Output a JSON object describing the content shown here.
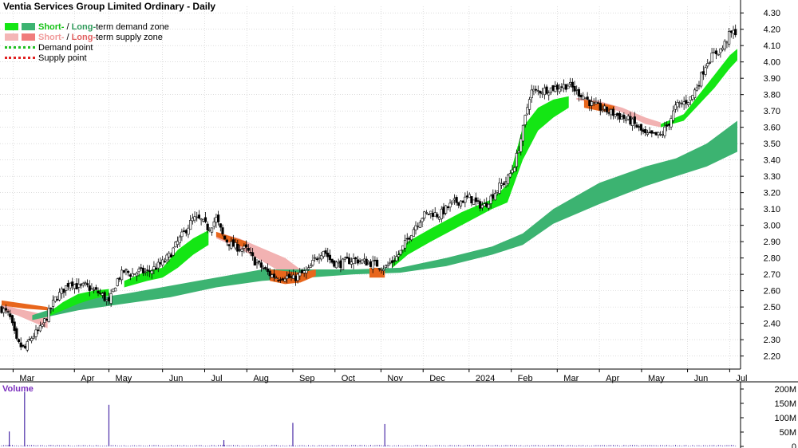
{
  "title": "Ventia Services Group Limited Ordinary - Daily",
  "legend": {
    "demand_zone": {
      "short": "Short-",
      "sep": " / ",
      "long": "Long-",
      "rest": "term demand zone"
    },
    "supply_zone": {
      "short": "Short-",
      "sep": " / ",
      "long": "Long-",
      "rest": "term supply zone"
    },
    "demand_point": "Demand point",
    "supply_point": "Supply point"
  },
  "colors": {
    "short_demand": "#14e614",
    "long_demand": "#3cb371",
    "short_supply": "#f4b6b6",
    "long_supply": "#f07c7c",
    "short_supply_fill": "#f2b2b2",
    "orange_band": "#e8661c",
    "candle": "#000000",
    "volume_bar": "#4b2ca8",
    "volume_label": "#7b2fbe",
    "grid": "#c8c8c8",
    "demand_point": "#21c021",
    "supply_point": "#e02020"
  },
  "volume_label": "Volume",
  "chart_data": {
    "type": "candlestick",
    "price_ylim": [
      2.12,
      4.34
    ],
    "price_ticks": [
      2.2,
      2.3,
      2.4,
      2.5,
      2.6,
      2.7,
      2.8,
      2.9,
      3.0,
      3.1,
      3.2,
      3.3,
      3.4,
      3.5,
      3.6,
      3.7,
      3.8,
      3.9,
      4.0,
      4.1,
      4.2,
      4.3
    ],
    "price_tick_labels": [
      "2.20",
      "2.30",
      "2.40",
      "2.50",
      "2.60",
      "2.70",
      "2.80",
      "2.90",
      "3.00",
      "3.10",
      "3.20",
      "3.30",
      "3.40",
      "3.50",
      "3.60",
      "3.70",
      "3.80",
      "3.90",
      "4.00",
      "4.10",
      "4.20",
      "4.30"
    ],
    "x_range": [
      0,
      96
    ],
    "months": [
      {
        "label": "Mar",
        "x": 1.5
      },
      {
        "label": "Apr",
        "x": 9.5
      },
      {
        "label": "May",
        "x": 14
      },
      {
        "label": "Jun",
        "x": 21
      },
      {
        "label": "Jul",
        "x": 26.5
      },
      {
        "label": "Aug",
        "x": 32
      },
      {
        "label": "Sep",
        "x": 38
      },
      {
        "label": "Oct",
        "x": 43.5
      },
      {
        "label": "Nov",
        "x": 49.5
      },
      {
        "label": "Dec",
        "x": 55
      },
      {
        "label": "2024",
        "x": 61
      },
      {
        "label": "Feb",
        "x": 66.5
      },
      {
        "label": "Mar",
        "x": 72.5
      },
      {
        "label": "Apr",
        "x": 78
      },
      {
        "label": "May",
        "x": 83.5
      },
      {
        "label": "Jun",
        "x": 89.5
      },
      {
        "label": "Jul",
        "x": 95
      }
    ],
    "close_path": [
      [
        0,
        2.49
      ],
      [
        1,
        2.45
      ],
      [
        2,
        2.28
      ],
      [
        3,
        2.24
      ],
      [
        4,
        2.32
      ],
      [
        5,
        2.36
      ],
      [
        6,
        2.45
      ],
      [
        7,
        2.55
      ],
      [
        8,
        2.6
      ],
      [
        9,
        2.66
      ],
      [
        10,
        2.62
      ],
      [
        11,
        2.63
      ],
      [
        12,
        2.6
      ],
      [
        13,
        2.58
      ],
      [
        14,
        2.52
      ],
      [
        15,
        2.66
      ],
      [
        16,
        2.72
      ],
      [
        17,
        2.7
      ],
      [
        18,
        2.72
      ],
      [
        19,
        2.71
      ],
      [
        20,
        2.74
      ],
      [
        21,
        2.77
      ],
      [
        22,
        2.82
      ],
      [
        23,
        2.9
      ],
      [
        24,
        2.97
      ],
      [
        25,
        3.04
      ],
      [
        26,
        3.03
      ],
      [
        27,
        2.98
      ],
      [
        28,
        3.04
      ],
      [
        29,
        2.92
      ],
      [
        30,
        2.88
      ],
      [
        31,
        2.86
      ],
      [
        32,
        2.85
      ],
      [
        33,
        2.78
      ],
      [
        34,
        2.74
      ],
      [
        35,
        2.7
      ],
      [
        36,
        2.68
      ],
      [
        37,
        2.69
      ],
      [
        38,
        2.67
      ],
      [
        39,
        2.7
      ],
      [
        40,
        2.72
      ],
      [
        41,
        2.8
      ],
      [
        42,
        2.85
      ],
      [
        43,
        2.78
      ],
      [
        44,
        2.76
      ],
      [
        45,
        2.78
      ],
      [
        46,
        2.79
      ],
      [
        47,
        2.78
      ],
      [
        48,
        2.77
      ],
      [
        49,
        2.76
      ],
      [
        50,
        2.74
      ],
      [
        51,
        2.78
      ],
      [
        52,
        2.83
      ],
      [
        53,
        2.92
      ],
      [
        54,
        3.0
      ],
      [
        55,
        3.06
      ],
      [
        56,
        3.08
      ],
      [
        57,
        3.06
      ],
      [
        58,
        3.1
      ],
      [
        59,
        3.14
      ],
      [
        60,
        3.15
      ],
      [
        61,
        3.17
      ],
      [
        62,
        3.13
      ],
      [
        63,
        3.12
      ],
      [
        64,
        3.18
      ],
      [
        65,
        3.24
      ],
      [
        66,
        3.28
      ],
      [
        67,
        3.38
      ],
      [
        68,
        3.58
      ],
      [
        69,
        3.82
      ],
      [
        70,
        3.82
      ],
      [
        71,
        3.83
      ],
      [
        72,
        3.84
      ],
      [
        73,
        3.85
      ],
      [
        74,
        3.86
      ],
      [
        75,
        3.82
      ],
      [
        76,
        3.79
      ],
      [
        77,
        3.74
      ],
      [
        78,
        3.72
      ],
      [
        79,
        3.7
      ],
      [
        80,
        3.68
      ],
      [
        81,
        3.66
      ],
      [
        82,
        3.64
      ],
      [
        83,
        3.6
      ],
      [
        84,
        3.55
      ],
      [
        85,
        3.55
      ],
      [
        86,
        3.55
      ],
      [
        87,
        3.62
      ],
      [
        88,
        3.73
      ],
      [
        89,
        3.75
      ],
      [
        90,
        3.78
      ],
      [
        91,
        3.88
      ],
      [
        92,
        4.0
      ],
      [
        93,
        4.05
      ],
      [
        94,
        4.08
      ],
      [
        95,
        4.17
      ],
      [
        96,
        4.19
      ]
    ],
    "long_demand_zone": {
      "upper": [
        [
          4,
          2.45
        ],
        [
          10,
          2.54
        ],
        [
          16,
          2.58
        ],
        [
          22,
          2.63
        ],
        [
          28,
          2.68
        ],
        [
          34,
          2.73
        ],
        [
          40,
          2.73
        ],
        [
          46,
          2.73
        ],
        [
          52,
          2.74
        ],
        [
          58,
          2.8
        ],
        [
          64,
          2.87
        ],
        [
          68,
          2.95
        ],
        [
          72,
          3.1
        ],
        [
          78,
          3.26
        ],
        [
          84,
          3.36
        ],
        [
          88,
          3.41
        ],
        [
          92,
          3.5
        ],
        [
          96,
          3.64
        ]
      ],
      "lower": [
        [
          4,
          2.42
        ],
        [
          10,
          2.48
        ],
        [
          16,
          2.52
        ],
        [
          22,
          2.56
        ],
        [
          28,
          2.62
        ],
        [
          34,
          2.66
        ],
        [
          40,
          2.68
        ],
        [
          46,
          2.7
        ],
        [
          52,
          2.71
        ],
        [
          58,
          2.75
        ],
        [
          64,
          2.82
        ],
        [
          68,
          2.88
        ],
        [
          72,
          3.01
        ],
        [
          78,
          3.13
        ],
        [
          84,
          3.24
        ],
        [
          88,
          3.3
        ],
        [
          92,
          3.36
        ],
        [
          96,
          3.45
        ]
      ]
    },
    "short_demand_zone": [
      {
        "upper": [
          [
            6,
            2.46
          ],
          [
            8,
            2.53
          ],
          [
            10,
            2.58
          ],
          [
            12,
            2.6
          ],
          [
            14,
            2.61
          ]
        ],
        "lower": [
          [
            6,
            2.44
          ],
          [
            8,
            2.48
          ],
          [
            10,
            2.52
          ],
          [
            12,
            2.55
          ],
          [
            14,
            2.57
          ]
        ]
      },
      {
        "upper": [
          [
            16,
            2.66
          ],
          [
            19,
            2.72
          ],
          [
            21,
            2.74
          ],
          [
            23,
            2.85
          ],
          [
            25,
            2.92
          ],
          [
            27,
            2.97
          ]
        ],
        "lower": [
          [
            16,
            2.62
          ],
          [
            19,
            2.66
          ],
          [
            21,
            2.68
          ],
          [
            23,
            2.74
          ],
          [
            25,
            2.82
          ],
          [
            27,
            2.88
          ]
        ]
      },
      {
        "upper": [
          [
            51,
            2.78
          ],
          [
            53,
            2.9
          ],
          [
            56,
            2.98
          ],
          [
            60,
            3.08
          ],
          [
            64,
            3.16
          ],
          [
            66,
            3.25
          ],
          [
            68,
            3.6
          ],
          [
            70,
            3.72
          ],
          [
            72,
            3.77
          ],
          [
            74,
            3.79
          ]
        ],
        "lower": [
          [
            51,
            2.74
          ],
          [
            53,
            2.82
          ],
          [
            56,
            2.9
          ],
          [
            60,
            3.0
          ],
          [
            64,
            3.1
          ],
          [
            66,
            3.14
          ],
          [
            68,
            3.4
          ],
          [
            70,
            3.58
          ],
          [
            72,
            3.66
          ],
          [
            74,
            3.72
          ]
        ]
      },
      {
        "upper": [
          [
            86,
            3.62
          ],
          [
            89,
            3.68
          ],
          [
            91,
            3.8
          ],
          [
            93,
            3.92
          ],
          [
            94,
            3.98
          ],
          [
            95,
            4.04
          ],
          [
            96,
            4.08
          ]
        ],
        "lower": [
          [
            86,
            3.6
          ],
          [
            89,
            3.64
          ],
          [
            91,
            3.74
          ],
          [
            93,
            3.84
          ],
          [
            94,
            3.9
          ],
          [
            95,
            3.96
          ],
          [
            96,
            4.01
          ]
        ]
      }
    ],
    "short_supply_zone": [
      {
        "upper": [
          [
            0,
            2.52
          ],
          [
            2,
            2.49
          ],
          [
            4,
            2.47
          ],
          [
            6,
            2.45
          ]
        ],
        "lower": [
          [
            0,
            2.48
          ],
          [
            2,
            2.45
          ],
          [
            4,
            2.41
          ],
          [
            6,
            2.37
          ]
        ]
      },
      {
        "upper": [
          [
            28,
            2.96
          ],
          [
            31,
            2.92
          ],
          [
            34,
            2.86
          ],
          [
            37,
            2.8
          ],
          [
            39,
            2.73
          ]
        ],
        "lower": [
          [
            28,
            2.92
          ],
          [
            31,
            2.86
          ],
          [
            34,
            2.78
          ],
          [
            37,
            2.7
          ],
          [
            39,
            2.69
          ]
        ]
      },
      {
        "upper": [
          [
            75,
            3.78
          ],
          [
            78,
            3.76
          ],
          [
            81,
            3.72
          ],
          [
            84,
            3.66
          ],
          [
            86,
            3.63
          ]
        ],
        "lower": [
          [
            75,
            3.77
          ],
          [
            78,
            3.74
          ],
          [
            81,
            3.69
          ],
          [
            84,
            3.62
          ],
          [
            86,
            3.6
          ]
        ]
      }
    ],
    "orange_band": [
      {
        "upper": [
          [
            0,
            2.54
          ],
          [
            3,
            2.52
          ],
          [
            6,
            2.5
          ]
        ],
        "lower": [
          [
            0,
            2.51
          ],
          [
            3,
            2.49
          ],
          [
            6,
            2.48
          ]
        ]
      },
      {
        "upper": [
          [
            28,
            2.96
          ],
          [
            30,
            2.93
          ],
          [
            32,
            2.9
          ]
        ],
        "lower": [
          [
            28,
            2.93
          ],
          [
            30,
            2.89
          ],
          [
            32,
            2.86
          ]
        ]
      },
      {
        "upper": [
          [
            35,
            2.73
          ],
          [
            37,
            2.72
          ],
          [
            39,
            2.71
          ],
          [
            41,
            2.73
          ]
        ],
        "lower": [
          [
            35,
            2.66
          ],
          [
            37,
            2.64
          ],
          [
            39,
            2.65
          ],
          [
            41,
            2.69
          ]
        ]
      },
      {
        "upper": [
          [
            48,
            2.74
          ],
          [
            49,
            2.74
          ],
          [
            50,
            2.73
          ]
        ],
        "lower": [
          [
            48,
            2.68
          ],
          [
            49,
            2.68
          ],
          [
            50,
            2.68
          ]
        ]
      },
      {
        "upper": [
          [
            76,
            3.77
          ],
          [
            78,
            3.75
          ],
          [
            80,
            3.73
          ]
        ],
        "lower": [
          [
            76,
            3.72
          ],
          [
            78,
            3.7
          ],
          [
            80,
            3.69
          ]
        ]
      }
    ],
    "volume_ylim": [
      0,
      200
    ],
    "volume_ticks": [
      0,
      50,
      100,
      150,
      200
    ],
    "volume_tick_labels": [
      "0",
      "50M",
      "100M",
      "150M",
      "200M"
    ],
    "volume_spikes": [
      [
        1,
        52
      ],
      [
        3,
        190
      ],
      [
        14,
        145
      ],
      [
        29,
        22
      ],
      [
        38,
        82
      ],
      [
        50,
        78
      ]
    ],
    "volume_base": 4
  }
}
